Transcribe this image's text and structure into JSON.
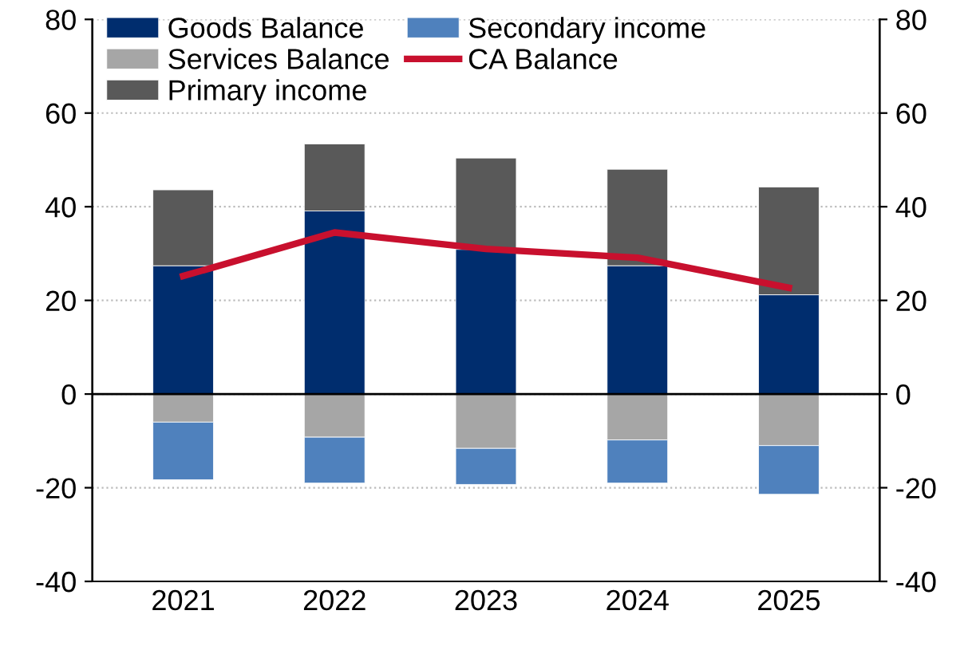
{
  "chart_data": {
    "type": "bar",
    "stacked": true,
    "categories": [
      "2021",
      "2022",
      "2023",
      "2024",
      "2025"
    ],
    "series": [
      {
        "name": "Goods Balance",
        "color": "#002d6e",
        "values": [
          27.4,
          39.1,
          30.9,
          27.4,
          21.2
        ]
      },
      {
        "name": "Services Balance",
        "color": "#a6a6a6",
        "values": [
          -6.0,
          -9.2,
          -11.6,
          -9.8,
          -11.0
        ]
      },
      {
        "name": "Primary income",
        "color": "#595959",
        "values": [
          16.2,
          14.3,
          19.5,
          20.6,
          23.0
        ]
      },
      {
        "name": "Secondary income",
        "color": "#4f81bd",
        "values": [
          -12.3,
          -9.8,
          -7.7,
          -9.2,
          -10.4
        ]
      },
      {
        "name": "CA Balance",
        "type": "line",
        "color": "#c8102e",
        "values": [
          25.2,
          34.5,
          31.0,
          29.1,
          22.7
        ]
      }
    ],
    "ylim": [
      -40,
      80
    ],
    "yticks": [
      -40,
      -20,
      0,
      20,
      40,
      60,
      80
    ],
    "y2lim": [
      -40,
      80
    ],
    "y2ticks": [
      -40,
      -20,
      0,
      20,
      40,
      60,
      80
    ],
    "grid": "y",
    "legend": "top left",
    "marker": "none",
    "line_style": "solid"
  }
}
